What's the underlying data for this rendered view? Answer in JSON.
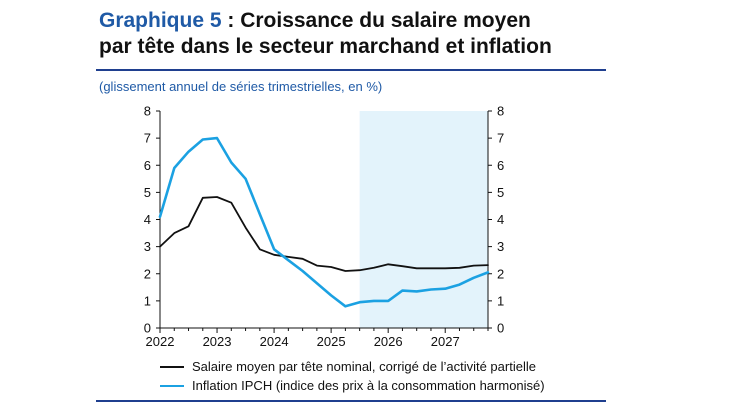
{
  "header": {
    "title_number": "Graphique 5",
    "title_text": " : Croissance du salaire moyen",
    "title_line2": "par tête dans le secteur marchand et inflation",
    "subtitle": "(glissement annuel de séries trimestrielles, en %)"
  },
  "colors": {
    "salary": "#111111",
    "inflation": "#1ba1e2",
    "projection_band": "#e3f3fb",
    "rule": "#1f3f8f",
    "accent": "#1f5aa6"
  },
  "chart_data": {
    "type": "line",
    "title": "Croissance du salaire moyen par tête dans le secteur marchand et inflation",
    "xlim": [
      2022,
      2027.75
    ],
    "ylim": [
      0,
      8
    ],
    "y_ticks": [
      "0",
      "1",
      "2",
      "3",
      "4",
      "5",
      "6",
      "7",
      "8"
    ],
    "y_ticks_right": [
      "0",
      "1",
      "2",
      "3",
      "4",
      "5",
      "6",
      "7",
      "8"
    ],
    "x_ticks": [
      "2022",
      "2023",
      "2024",
      "2025",
      "2026",
      "2027"
    ],
    "projection_start": 2025.5,
    "series": [
      {
        "name": "Salaire moyen par tête nominal, corrigé de l’activité partielle",
        "color": "#111111",
        "x": [
          2022.0,
          2022.25,
          2022.5,
          2022.75,
          2023.0,
          2023.25,
          2023.5,
          2023.75,
          2024.0,
          2024.25,
          2024.5,
          2024.75,
          2025.0,
          2025.25,
          2025.5,
          2025.75,
          2026.0,
          2026.25,
          2026.5,
          2026.75,
          2027.0,
          2027.25,
          2027.5,
          2027.75
        ],
        "y": [
          3.0,
          3.5,
          3.75,
          4.8,
          4.83,
          4.62,
          3.7,
          2.9,
          2.7,
          2.62,
          2.55,
          2.3,
          2.25,
          2.1,
          2.13,
          2.22,
          2.35,
          2.28,
          2.2,
          2.2,
          2.2,
          2.22,
          2.3,
          2.32
        ]
      },
      {
        "name": "Inflation IPCH (indice des prix à la consommation harmonisé)",
        "color": "#1ba1e2",
        "x": [
          2022.0,
          2022.25,
          2022.5,
          2022.75,
          2023.0,
          2023.25,
          2023.5,
          2023.75,
          2024.0,
          2024.25,
          2024.5,
          2024.75,
          2025.0,
          2025.25,
          2025.5,
          2025.75,
          2026.0,
          2026.25,
          2026.5,
          2026.75,
          2027.0,
          2027.25,
          2027.5,
          2027.75
        ],
        "y": [
          4.1,
          5.9,
          6.5,
          6.95,
          7.0,
          6.1,
          5.5,
          4.2,
          2.9,
          2.5,
          2.1,
          1.65,
          1.2,
          0.8,
          0.95,
          1.0,
          1.0,
          1.38,
          1.35,
          1.42,
          1.45,
          1.6,
          1.85,
          2.05
        ]
      }
    ]
  },
  "legend": {
    "salary_label": "Salaire moyen par tête nominal, corrigé de l’activité partielle",
    "inflation_label": "Inflation IPCH (indice des prix à la consommation harmonisé)"
  }
}
